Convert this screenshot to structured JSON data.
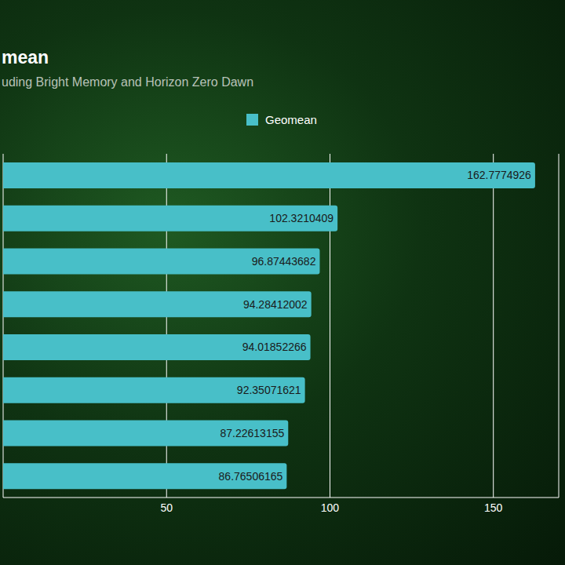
{
  "chart_data": {
    "type": "bar",
    "title": "mean",
    "subtitle": "uding Bright Memory and Horizon Zero Dawn",
    "orientation": "horizontal",
    "categories": [
      null,
      null,
      null,
      null,
      null,
      null,
      null,
      null
    ],
    "series": [
      {
        "name": "Geomean",
        "color": "#48bfc8",
        "values": [
          162.7774926,
          102.3210409,
          96.87443682,
          94.28412002,
          94.01852266,
          92.35071621,
          87.22613155,
          86.76506165
        ]
      }
    ],
    "xlim": [
      0,
      170
    ],
    "xticks": [
      50,
      100,
      150
    ],
    "grid": true,
    "legend": "top",
    "data_labels": true
  }
}
